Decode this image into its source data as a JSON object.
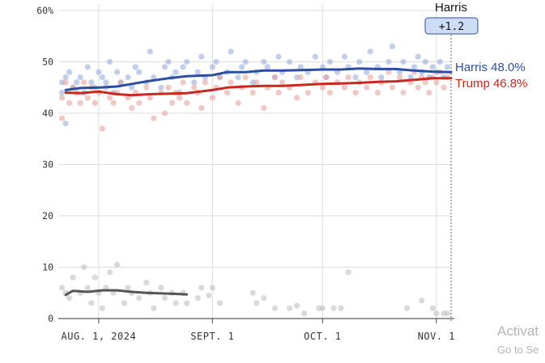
{
  "chart_data": {
    "type": "scatter",
    "x_start": "2024-07-21",
    "x_end": "2024-11-05",
    "ylim": [
      0,
      60
    ],
    "y_ticks": [
      {
        "value": 0,
        "label": "0"
      },
      {
        "value": 10,
        "label": "10"
      },
      {
        "value": 20,
        "label": "20"
      },
      {
        "value": 30,
        "label": "30"
      },
      {
        "value": 40,
        "label": "40"
      },
      {
        "value": 50,
        "label": "50"
      },
      {
        "value": 60,
        "label": "60%"
      }
    ],
    "x_ticks": [
      {
        "date": "2024-08-01",
        "label": "AUG. 1, 2024"
      },
      {
        "date": "2024-09-01",
        "label": "SEPT. 1"
      },
      {
        "date": "2024-10-01",
        "label": "OCT. 1"
      },
      {
        "date": "2024-11-01",
        "label": "NOV. 1"
      }
    ],
    "grid": true,
    "lead": {
      "candidate": "Harris",
      "margin": "+1.2"
    },
    "series": [
      {
        "name": "Harris",
        "label": "Harris 48.0%",
        "color": "#2b4ea3",
        "dot_color": "#8ea6dc",
        "trend": [
          [
            "2024-07-23",
            44.5
          ],
          [
            "2024-07-27",
            44.9
          ],
          [
            "2024-08-01",
            45.0
          ],
          [
            "2024-08-06",
            45.2
          ],
          [
            "2024-08-10",
            45.7
          ],
          [
            "2024-08-15",
            46.3
          ],
          [
            "2024-08-20",
            46.8
          ],
          [
            "2024-08-25",
            47.2
          ],
          [
            "2024-09-01",
            47.4
          ],
          [
            "2024-09-05",
            48.0
          ],
          [
            "2024-09-10",
            48.0
          ],
          [
            "2024-09-15",
            48.3
          ],
          [
            "2024-09-20",
            48.3
          ],
          [
            "2024-09-25",
            48.4
          ],
          [
            "2024-10-01",
            48.5
          ],
          [
            "2024-10-06",
            48.5
          ],
          [
            "2024-10-11",
            48.7
          ],
          [
            "2024-10-16",
            48.6
          ],
          [
            "2024-10-21",
            48.6
          ],
          [
            "2024-10-26",
            48.3
          ],
          [
            "2024-10-31",
            48.1
          ],
          [
            "2024-11-05",
            48.0
          ]
        ],
        "polls": [
          [
            "2024-07-22",
            46
          ],
          [
            "2024-07-22",
            44
          ],
          [
            "2024-07-23",
            38
          ],
          [
            "2024-07-23",
            47
          ],
          [
            "2024-07-24",
            48
          ],
          [
            "2024-07-25",
            45
          ],
          [
            "2024-07-26",
            46
          ],
          [
            "2024-07-27",
            47
          ],
          [
            "2024-07-28",
            44
          ],
          [
            "2024-07-29",
            49
          ],
          [
            "2024-07-30",
            46
          ],
          [
            "2024-07-31",
            45
          ],
          [
            "2024-08-01",
            48
          ],
          [
            "2024-08-02",
            47
          ],
          [
            "2024-08-03",
            46
          ],
          [
            "2024-08-04",
            50
          ],
          [
            "2024-08-05",
            44
          ],
          [
            "2024-08-06",
            48
          ],
          [
            "2024-08-07",
            46
          ],
          [
            "2024-08-09",
            47
          ],
          [
            "2024-08-10",
            45
          ],
          [
            "2024-08-11",
            49
          ],
          [
            "2024-08-12",
            48
          ],
          [
            "2024-08-14",
            46
          ],
          [
            "2024-08-15",
            52
          ],
          [
            "2024-08-16",
            47
          ],
          [
            "2024-08-18",
            45
          ],
          [
            "2024-08-19",
            49
          ],
          [
            "2024-08-20",
            50
          ],
          [
            "2024-08-21",
            47
          ],
          [
            "2024-08-22",
            48
          ],
          [
            "2024-08-23",
            44
          ],
          [
            "2024-08-24",
            49
          ],
          [
            "2024-08-25",
            50
          ],
          [
            "2024-08-27",
            46
          ],
          [
            "2024-08-28",
            48
          ],
          [
            "2024-08-29",
            51
          ],
          [
            "2024-08-30",
            47
          ],
          [
            "2024-09-01",
            49
          ],
          [
            "2024-09-02",
            50
          ],
          [
            "2024-09-03",
            47
          ],
          [
            "2024-09-05",
            48
          ],
          [
            "2024-09-06",
            52
          ],
          [
            "2024-09-08",
            47
          ],
          [
            "2024-09-09",
            49
          ],
          [
            "2024-09-10",
            50
          ],
          [
            "2024-09-12",
            46
          ],
          [
            "2024-09-13",
            48
          ],
          [
            "2024-09-15",
            50
          ],
          [
            "2024-09-16",
            49
          ],
          [
            "2024-09-18",
            47
          ],
          [
            "2024-09-19",
            51
          ],
          [
            "2024-09-20",
            48
          ],
          [
            "2024-09-22",
            50
          ],
          [
            "2024-09-24",
            47
          ],
          [
            "2024-09-25",
            49
          ],
          [
            "2024-09-27",
            48
          ],
          [
            "2024-09-29",
            51
          ],
          [
            "2024-10-01",
            49
          ],
          [
            "2024-10-02",
            47
          ],
          [
            "2024-10-03",
            50
          ],
          [
            "2024-10-05",
            48
          ],
          [
            "2024-10-07",
            51
          ],
          [
            "2024-10-08",
            49
          ],
          [
            "2024-10-10",
            47
          ],
          [
            "2024-10-11",
            50
          ],
          [
            "2024-10-13",
            48
          ],
          [
            "2024-10-14",
            52
          ],
          [
            "2024-10-16",
            49
          ],
          [
            "2024-10-17",
            47
          ],
          [
            "2024-10-19",
            50
          ],
          [
            "2024-10-20",
            53
          ],
          [
            "2024-10-22",
            48
          ],
          [
            "2024-10-23",
            50
          ],
          [
            "2024-10-25",
            47
          ],
          [
            "2024-10-26",
            49
          ],
          [
            "2024-10-27",
            51
          ],
          [
            "2024-10-28",
            48
          ],
          [
            "2024-10-29",
            50
          ],
          [
            "2024-10-30",
            47
          ],
          [
            "2024-10-31",
            49
          ],
          [
            "2024-11-01",
            48
          ],
          [
            "2024-11-02",
            50
          ],
          [
            "2024-11-03",
            47
          ],
          [
            "2024-11-04",
            49
          ]
        ]
      },
      {
        "name": "Trump",
        "label": "Trump 46.8%",
        "color": "#c8281e",
        "dot_color": "#e89a95",
        "trend": [
          [
            "2024-07-23",
            44.0
          ],
          [
            "2024-07-27",
            43.9
          ],
          [
            "2024-08-01",
            44.2
          ],
          [
            "2024-08-06",
            43.7
          ],
          [
            "2024-08-10",
            43.5
          ],
          [
            "2024-08-15",
            43.7
          ],
          [
            "2024-08-20",
            43.8
          ],
          [
            "2024-08-25",
            43.9
          ],
          [
            "2024-09-01",
            44.5
          ],
          [
            "2024-09-05",
            45.0
          ],
          [
            "2024-09-10",
            45.2
          ],
          [
            "2024-09-15",
            45.3
          ],
          [
            "2024-09-20",
            45.3
          ],
          [
            "2024-09-25",
            45.5
          ],
          [
            "2024-10-01",
            45.7
          ],
          [
            "2024-10-06",
            45.8
          ],
          [
            "2024-10-11",
            45.9
          ],
          [
            "2024-10-16",
            46.1
          ],
          [
            "2024-10-21",
            46.2
          ],
          [
            "2024-10-26",
            46.5
          ],
          [
            "2024-10-31",
            46.8
          ],
          [
            "2024-11-05",
            46.8
          ]
        ],
        "polls": [
          [
            "2024-07-22",
            39
          ],
          [
            "2024-07-22",
            43
          ],
          [
            "2024-07-23",
            46
          ],
          [
            "2024-07-24",
            42
          ],
          [
            "2024-07-25",
            45
          ],
          [
            "2024-07-26",
            44
          ],
          [
            "2024-07-27",
            42
          ],
          [
            "2024-07-28",
            46
          ],
          [
            "2024-07-29",
            43
          ],
          [
            "2024-07-30",
            45
          ],
          [
            "2024-07-31",
            42
          ],
          [
            "2024-08-01",
            44
          ],
          [
            "2024-08-02",
            37
          ],
          [
            "2024-08-03",
            45
          ],
          [
            "2024-08-04",
            43
          ],
          [
            "2024-08-05",
            42
          ],
          [
            "2024-08-06",
            44
          ],
          [
            "2024-08-07",
            46
          ],
          [
            "2024-08-09",
            43
          ],
          [
            "2024-08-10",
            41
          ],
          [
            "2024-08-11",
            44
          ],
          [
            "2024-08-12",
            42
          ],
          [
            "2024-08-14",
            45
          ],
          [
            "2024-08-15",
            43
          ],
          [
            "2024-08-16",
            39
          ],
          [
            "2024-08-18",
            44
          ],
          [
            "2024-08-19",
            40
          ],
          [
            "2024-08-20",
            45
          ],
          [
            "2024-08-21",
            42
          ],
          [
            "2024-08-22",
            44
          ],
          [
            "2024-08-23",
            43
          ],
          [
            "2024-08-24",
            46
          ],
          [
            "2024-08-25",
            42
          ],
          [
            "2024-08-27",
            45
          ],
          [
            "2024-08-28",
            44
          ],
          [
            "2024-08-29",
            41
          ],
          [
            "2024-08-30",
            46
          ],
          [
            "2024-09-01",
            43
          ],
          [
            "2024-09-02",
            45
          ],
          [
            "2024-09-03",
            47
          ],
          [
            "2024-09-05",
            44
          ],
          [
            "2024-09-06",
            46
          ],
          [
            "2024-09-08",
            42
          ],
          [
            "2024-09-09",
            45
          ],
          [
            "2024-09-10",
            47
          ],
          [
            "2024-09-12",
            44
          ],
          [
            "2024-09-13",
            46
          ],
          [
            "2024-09-15",
            41
          ],
          [
            "2024-09-16",
            45
          ],
          [
            "2024-09-18",
            47
          ],
          [
            "2024-09-19",
            44
          ],
          [
            "2024-09-20",
            46
          ],
          [
            "2024-09-22",
            45
          ],
          [
            "2024-09-24",
            43
          ],
          [
            "2024-09-25",
            47
          ],
          [
            "2024-09-27",
            44
          ],
          [
            "2024-09-29",
            46
          ],
          [
            "2024-10-01",
            45
          ],
          [
            "2024-10-02",
            47
          ],
          [
            "2024-10-03",
            44
          ],
          [
            "2024-10-05",
            46
          ],
          [
            "2024-10-07",
            45
          ],
          [
            "2024-10-08",
            47
          ],
          [
            "2024-10-10",
            44
          ],
          [
            "2024-10-11",
            46
          ],
          [
            "2024-10-13",
            45
          ],
          [
            "2024-10-14",
            47
          ],
          [
            "2024-10-16",
            44
          ],
          [
            "2024-10-17",
            46
          ],
          [
            "2024-10-19",
            48
          ],
          [
            "2024-10-20",
            45
          ],
          [
            "2024-10-22",
            47
          ],
          [
            "2024-10-23",
            44
          ],
          [
            "2024-10-25",
            46
          ],
          [
            "2024-10-26",
            48
          ],
          [
            "2024-10-27",
            45
          ],
          [
            "2024-10-28",
            47
          ],
          [
            "2024-10-29",
            46
          ],
          [
            "2024-10-30",
            44
          ],
          [
            "2024-10-31",
            47
          ],
          [
            "2024-11-01",
            46
          ],
          [
            "2024-11-02",
            48
          ],
          [
            "2024-11-03",
            45
          ],
          [
            "2024-11-04",
            47
          ]
        ]
      },
      {
        "name": "",
        "label": "",
        "color": "#555555",
        "dot_color": "#bcbcbc",
        "trend": [
          [
            "2024-07-23",
            4.6
          ],
          [
            "2024-07-25",
            5.4
          ],
          [
            "2024-07-29",
            5.2
          ],
          [
            "2024-08-02",
            5.5
          ],
          [
            "2024-08-06",
            5.5
          ],
          [
            "2024-08-10",
            5.2
          ],
          [
            "2024-08-14",
            5.0
          ],
          [
            "2024-08-18",
            4.9
          ],
          [
            "2024-08-22",
            4.8
          ],
          [
            "2024-08-25",
            4.7
          ]
        ],
        "polls": [
          [
            "2024-07-22",
            6
          ],
          [
            "2024-07-23",
            5
          ],
          [
            "2024-07-24",
            4
          ],
          [
            "2024-07-25",
            8
          ],
          [
            "2024-07-27",
            5
          ],
          [
            "2024-07-28",
            10
          ],
          [
            "2024-07-29",
            6
          ],
          [
            "2024-07-30",
            3
          ],
          [
            "2024-07-31",
            8
          ],
          [
            "2024-08-01",
            5
          ],
          [
            "2024-08-02",
            2
          ],
          [
            "2024-08-03",
            6
          ],
          [
            "2024-08-04",
            9
          ],
          [
            "2024-08-05",
            5
          ],
          [
            "2024-08-06",
            10.5
          ],
          [
            "2024-08-08",
            3
          ],
          [
            "2024-08-09",
            6
          ],
          [
            "2024-08-10",
            5
          ],
          [
            "2024-08-12",
            4
          ],
          [
            "2024-08-14",
            7
          ],
          [
            "2024-08-15",
            5
          ],
          [
            "2024-08-16",
            2
          ],
          [
            "2024-08-18",
            6
          ],
          [
            "2024-08-19",
            4
          ],
          [
            "2024-08-21",
            5
          ],
          [
            "2024-08-22",
            3
          ],
          [
            "2024-08-24",
            5
          ],
          [
            "2024-08-25",
            3
          ],
          [
            "2024-08-28",
            4
          ],
          [
            "2024-08-29",
            6
          ],
          [
            "2024-08-31",
            4.5
          ],
          [
            "2024-09-01",
            6
          ],
          [
            "2024-09-03",
            3
          ],
          [
            "2024-09-12",
            5
          ],
          [
            "2024-09-13",
            3
          ],
          [
            "2024-09-15",
            4
          ],
          [
            "2024-09-18",
            2
          ],
          [
            "2024-09-22",
            2
          ],
          [
            "2024-09-24",
            2.5
          ],
          [
            "2024-09-26",
            1
          ],
          [
            "2024-09-30",
            2
          ],
          [
            "2024-10-01",
            2
          ],
          [
            "2024-10-04",
            2
          ],
          [
            "2024-10-06",
            2
          ],
          [
            "2024-10-08",
            9
          ],
          [
            "2024-10-24",
            2
          ],
          [
            "2024-10-28",
            3.5
          ],
          [
            "2024-10-31",
            2
          ],
          [
            "2024-11-01",
            1
          ],
          [
            "2024-11-03",
            1
          ],
          [
            "2024-11-04",
            1
          ]
        ]
      }
    ]
  },
  "watermark": {
    "line1": "Activat",
    "line2": "Go to Se"
  }
}
